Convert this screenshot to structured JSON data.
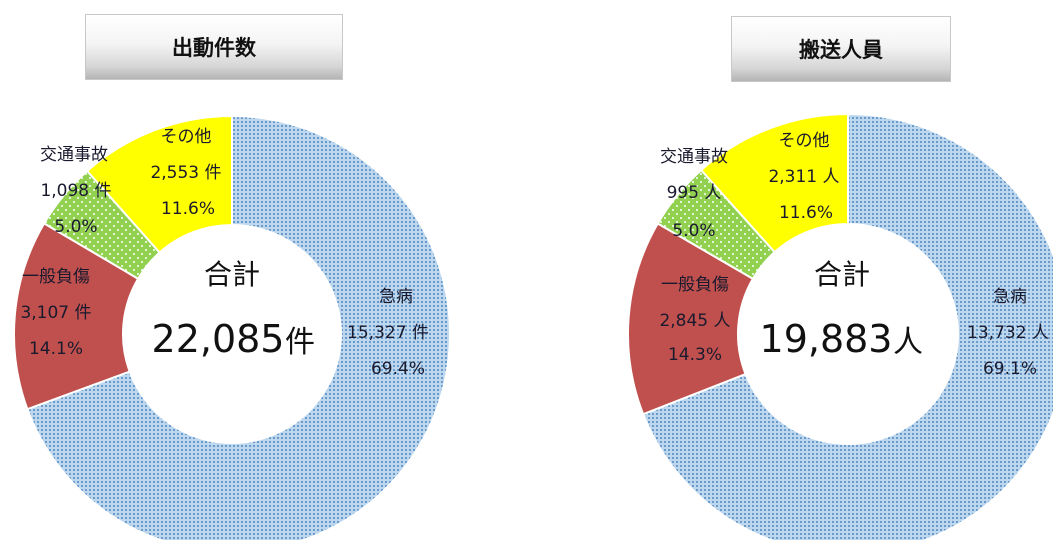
{
  "chart_data": [
    {
      "type": "pie",
      "title": "出動件数",
      "total_label": "合計",
      "total_value": "22,085",
      "unit": "件",
      "slices": [
        {
          "name": "急病",
          "value": 15327,
          "value_text": "15,327",
          "unit": "件",
          "percent": "69.4%",
          "color": "#bcd7ee"
        },
        {
          "name": "一般負傷",
          "value": 3107,
          "value_text": "3,107",
          "unit": "件",
          "percent": "14.1%",
          "color": "#c0504d"
        },
        {
          "name": "交通事故",
          "value": 1098,
          "value_text": "1,098",
          "unit": "件",
          "percent": "5.0%",
          "color": "#92d050"
        },
        {
          "name": "その他",
          "value": 2553,
          "value_text": "2,553",
          "unit": "件",
          "percent": "11.6%",
          "color": "#ffff00"
        }
      ]
    },
    {
      "type": "pie",
      "title": "搬送人員",
      "total_label": "合計",
      "total_value": "19,883",
      "unit": "人",
      "slices": [
        {
          "name": "急病",
          "value": 13732,
          "value_text": "13,732",
          "unit": "人",
          "percent": "69.1%",
          "color": "#bcd7ee"
        },
        {
          "name": "一般負傷",
          "value": 2845,
          "value_text": "2,845",
          "unit": "人",
          "percent": "14.3%",
          "color": "#c0504d"
        },
        {
          "name": "交通事故",
          "value": 995,
          "value_text": "995",
          "unit": "人",
          "percent": "5.0%",
          "color": "#92d050"
        },
        {
          "name": "その他",
          "value": 2311,
          "value_text": "2,311",
          "unit": "人",
          "percent": "11.6%",
          "color": "#ffff00"
        }
      ]
    }
  ]
}
